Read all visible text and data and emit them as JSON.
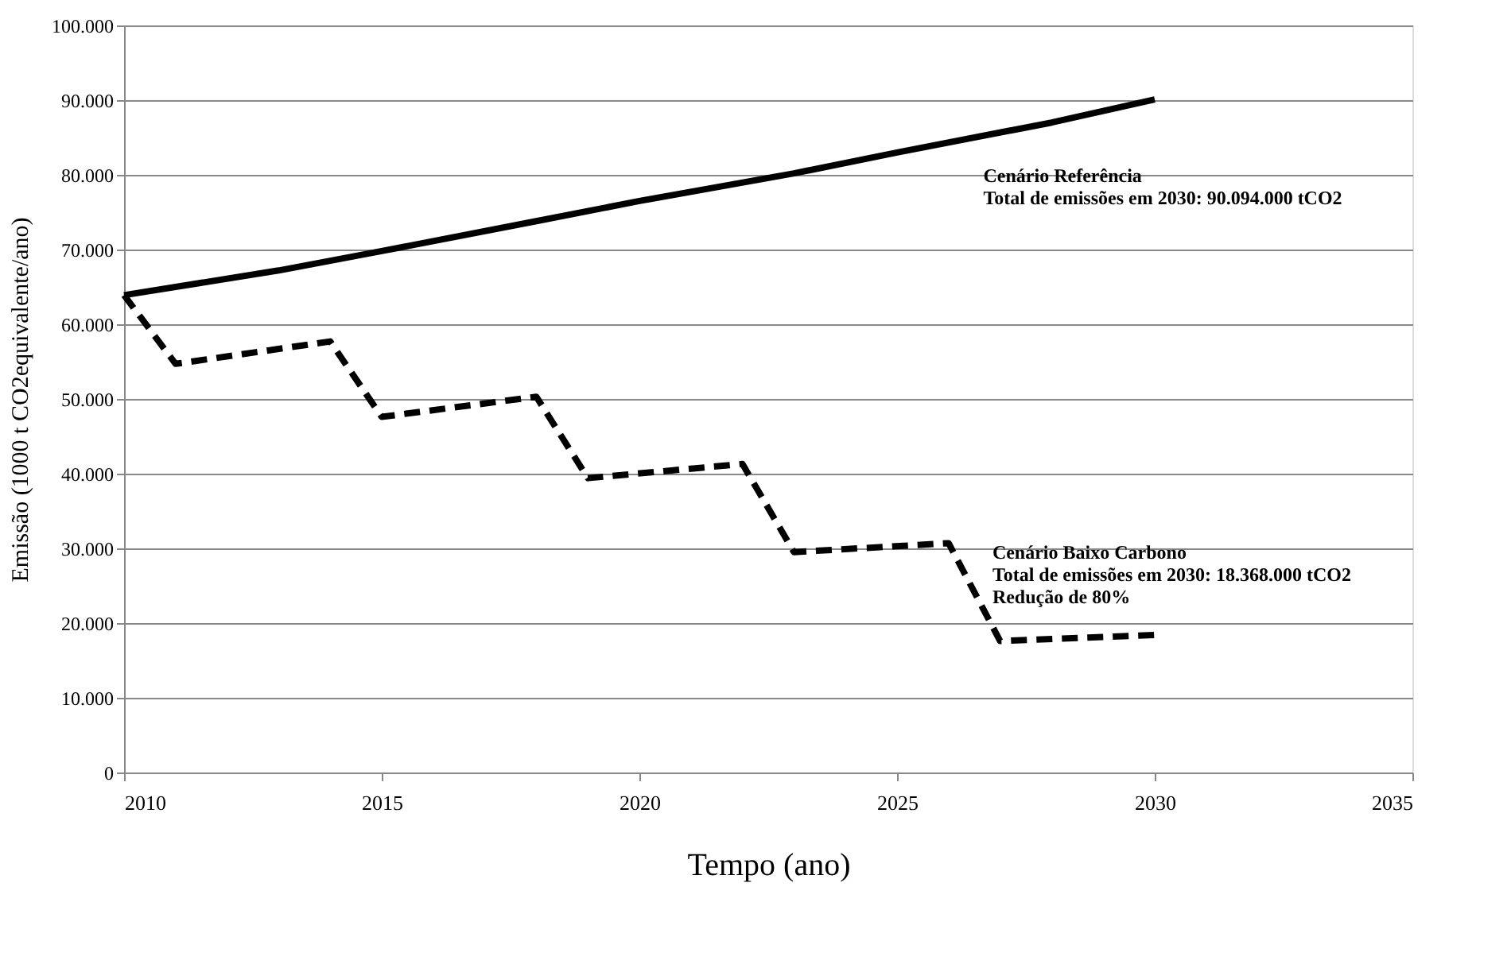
{
  "chart_data": {
    "type": "line",
    "xlabel": "Tempo (ano)",
    "ylabel": "Emissão (1000 t CO2equivalente/ano)",
    "xlim": [
      2010,
      2035
    ],
    "xticks": [
      2010,
      2015,
      2020,
      2025,
      2030,
      2035
    ],
    "ylim": [
      0,
      100000
    ],
    "yticks": [
      {
        "value": 0,
        "label": "0"
      },
      {
        "value": 10000,
        "label": "10.000"
      },
      {
        "value": 20000,
        "label": "20.000"
      },
      {
        "value": 30000,
        "label": "30.000"
      },
      {
        "value": 40000,
        "label": "40.000"
      },
      {
        "value": 50000,
        "label": "50.000"
      },
      {
        "value": 60000,
        "label": "60.000"
      },
      {
        "value": 70000,
        "label": "70.000"
      },
      {
        "value": 80000,
        "label": "80.000"
      },
      {
        "value": 90000,
        "label": "90.000"
      },
      {
        "value": 100000,
        "label": "100.000"
      }
    ],
    "grid": "y",
    "marker": "none",
    "series": [
      {
        "color": "#000000",
        "line_style": "solid",
        "x": [
          2010,
          2013,
          2015,
          2018,
          2020,
          2023,
          2025,
          2028,
          2030
        ],
        "values": [
          63900,
          67200,
          69800,
          73800,
          76500,
          80200,
          83000,
          87000,
          90100
        ]
      },
      {
        "color": "#000000",
        "line_style": "dashed",
        "x": [
          2010,
          2011,
          2014,
          2015,
          2018,
          2019,
          2022,
          2023,
          2026,
          2027,
          2030
        ],
        "values": [
          63900,
          54700,
          57700,
          47600,
          50300,
          39400,
          41300,
          29500,
          30700,
          17600,
          18400
        ]
      }
    ],
    "annotations": [
      "Cenário  Referência\nTotal de emissões em 2030:  90.094.000 tCO2",
      "Cenário  Baixo Carbono\nTotal de emissões em 2030:  18.368.000 tCO2\nRedução de 80%"
    ]
  }
}
